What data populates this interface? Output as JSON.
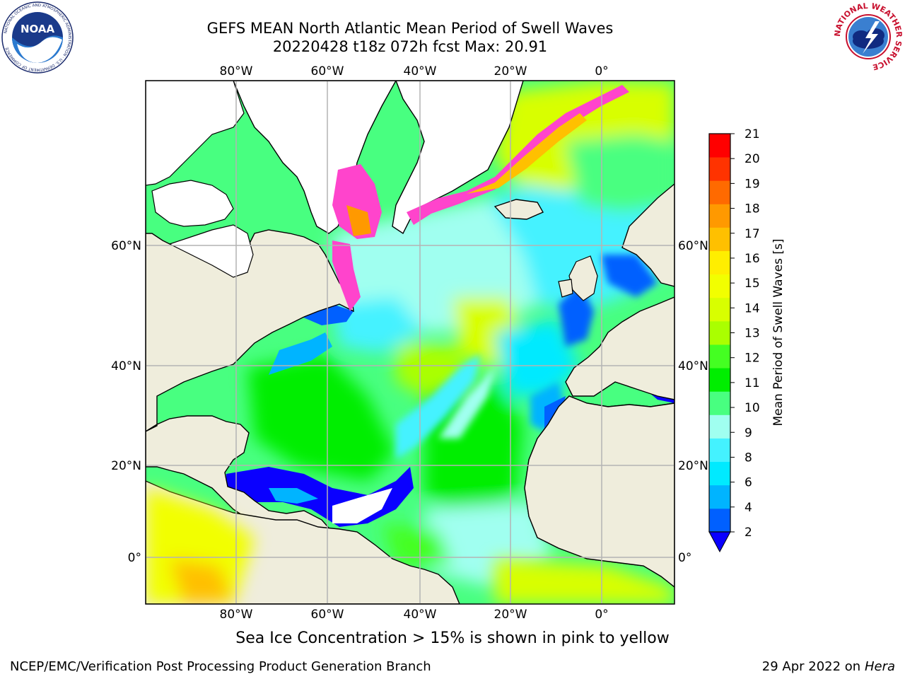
{
  "header": {
    "title_line1": "GEFS MEAN North Atlantic Mean Period of Swell Waves",
    "title_line2": "20220428 t18z 072h fcst   Max: 20.91"
  },
  "logos": {
    "noaa": {
      "text": "NOAA",
      "ring_text": "NATIONAL OCEANIC AND ATMOSPHERIC ADMINISTRATION · U.S. DEPARTMENT OF COMMERCE",
      "icon": "noaa-logo"
    },
    "nws": {
      "ring_text": "NATIONAL WEATHER SERVICE",
      "icon": "nws-logo"
    }
  },
  "map": {
    "top_lon_labels": [
      "80°W",
      "60°W",
      "40°W",
      "20°W",
      "0°"
    ],
    "bottom_lon_labels": [
      "80°W",
      "60°W",
      "40°W",
      "20°W",
      "0°"
    ],
    "left_lat_labels": [
      "60°N",
      "40°N",
      "20°N",
      "0°"
    ],
    "right_lat_labels": [
      "60°N",
      "40°N",
      "20°N",
      "0°"
    ],
    "colors": {
      "land": "#efeddc",
      "ice_land": "#ffffff",
      "grid": "#b4b4b4",
      "sea_ice": "#ff44cc"
    }
  },
  "colorbar": {
    "label": "Mean Period of Swell Waves [s]",
    "tick_labels": [
      "21",
      "20",
      "19",
      "18",
      "17",
      "16",
      "15",
      "14",
      "13",
      "12",
      "11",
      "10",
      "9",
      "8",
      "6",
      "4",
      "2"
    ],
    "colors_bottom_to_top": [
      "#0060ff",
      "#00b4ff",
      "#00eaff",
      "#44f2ff",
      "#a0fff0",
      "#48ff80",
      "#00ee00",
      "#44ff22",
      "#aaff00",
      "#d8ff00",
      "#f2ff00",
      "#ffee00",
      "#ffc000",
      "#ff9900",
      "#ff6a00",
      "#ff3300",
      "#ff0000"
    ],
    "extend_color": "#0a00ff"
  },
  "footer": {
    "sea_ice_note": "Sea Ice Concentration > 15% is shown in pink to yellow",
    "credit": "NCEP/EMC/Verification Post Processing Product Generation Branch",
    "date": "29 Apr 2022 on",
    "platform": "Hera"
  }
}
